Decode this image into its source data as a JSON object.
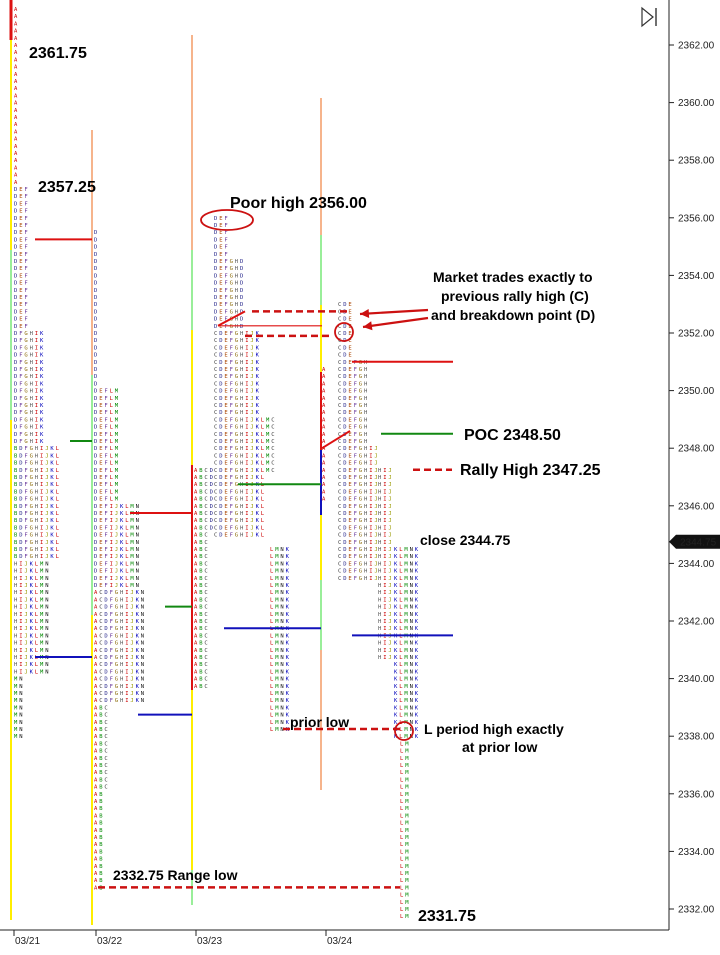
{
  "chart_data": {
    "type": "market_profile",
    "y_axis": {
      "ticks": [
        "2362.00",
        "2360.00",
        "2358.00",
        "2356.00",
        "2354.00",
        "2352.00",
        "2350.00",
        "2348.00",
        "2346.00",
        "2344.00",
        "2342.00",
        "2340.00",
        "2338.00",
        "2336.00",
        "2334.00",
        "2332.00"
      ],
      "range": [
        2331.3,
        2363.5
      ],
      "current_price": "2344.75"
    },
    "x_axis": {
      "dates": [
        "03/21",
        "03/22",
        "03/23",
        "03/24"
      ]
    },
    "sessions": [
      {
        "date": "03/21",
        "high": 2363.25,
        "low": 2338.0,
        "poc": 2348.25,
        "value_high": 2355.25,
        "value_low": 2340.75
      },
      {
        "date": "03/22",
        "high": 2355.5,
        "low": 2332.75,
        "poc": 2342.5,
        "value_high": 2345.75,
        "value_low": 2338.75
      },
      {
        "date": "03/23",
        "high": 2356.0,
        "low": 2338.25,
        "poc": 2346.75,
        "value_high": 2352.25,
        "value_low": 2341.75
      },
      {
        "date": "03/24",
        "high": 2353.0,
        "low": 2331.75,
        "poc": 2348.5,
        "value_high": 2351.0,
        "value_low": 2341.5
      }
    ],
    "annotations": {
      "high_2361": "2361.75",
      "high_2357": "2357.25",
      "poor_high": "Poor high 2356.00",
      "market_note_1": "Market trades exactly to",
      "market_note_2": "previous rally high (C)",
      "market_note_3": "and breakdown point (D)",
      "poc": "POC 2348.50",
      "rally_high": "Rally High 2347.25",
      "close": "close 2344.75",
      "prior_low": "prior low",
      "l_period_1": "L period high exactly",
      "l_period_2": "at prior low",
      "range_low": "2332.75 Range low",
      "low_2331": "2331.75"
    },
    "colors": {
      "red_line": "#dd1111",
      "green_line": "#118811",
      "blue_line": "#1111bb",
      "yellow_bar": "#ffee00",
      "green_bar": "#99ee99",
      "salmon_bar": "#f6b48c"
    }
  },
  "toolbar": {
    "play_icon": "play-pause-icon"
  }
}
